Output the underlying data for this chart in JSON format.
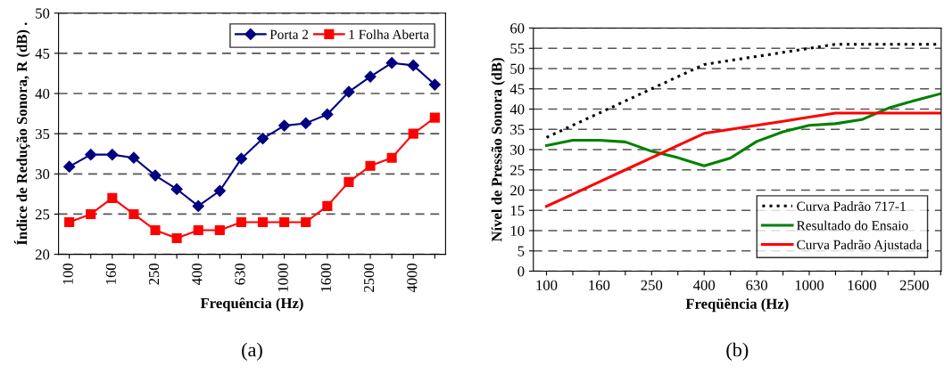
{
  "chart_data": [
    {
      "type": "line",
      "xlabel": "Frequência (Hz)",
      "ylabel": "Índice de Redução Sonora, R (dB) .",
      "categories": [
        "100",
        null,
        "160",
        null,
        "250",
        null,
        "400",
        null,
        "630",
        null,
        "1000",
        null,
        "1600",
        null,
        "2500",
        null,
        "4000",
        null
      ],
      "series": [
        {
          "name": "Porta 2",
          "color": "#000080",
          "marker": "diamond",
          "values": [
            30.9,
            32.4,
            32.4,
            32.0,
            29.8,
            28.1,
            26.0,
            27.9,
            31.9,
            34.4,
            36.0,
            36.3,
            37.4,
            40.2,
            42.1,
            43.8,
            43.5,
            41.1
          ]
        },
        {
          "name": "1 Folha Aberta",
          "color": "#ff0000",
          "marker": "square",
          "values": [
            24,
            25,
            27,
            25,
            23,
            22,
            23,
            23,
            24,
            24,
            24,
            24,
            26,
            29,
            31,
            32,
            35,
            37
          ]
        }
      ],
      "ylim": [
        20,
        50
      ],
      "yticks": [
        20,
        25,
        30,
        35,
        40,
        45,
        50
      ],
      "grid": "y",
      "legend": "top right",
      "annotations": [
        "(a)"
      ]
    },
    {
      "type": "line",
      "xlabel": "Freqüência (Hz)",
      "ylabel": "Nível de Pressão Sonora (dB)",
      "categories": [
        "100",
        null,
        "160",
        null,
        "250",
        null,
        "400",
        null,
        "630",
        null,
        "1000",
        null,
        "1600",
        null,
        "2500",
        null
      ],
      "series": [
        {
          "name": "Curva Padrão 717-1",
          "color": "#000000",
          "line_style": "dotted",
          "values": [
            33,
            36,
            39,
            42,
            45,
            48,
            51,
            52,
            53,
            54,
            55,
            56,
            56,
            56,
            56,
            56
          ]
        },
        {
          "name": "Resultado do Ensaio",
          "color": "#008000",
          "values": [
            31,
            32.3,
            32.3,
            31.9,
            29.6,
            28,
            26,
            27.9,
            32,
            34.4,
            36,
            36.4,
            37.4,
            40.2,
            42.1,
            43.8
          ]
        },
        {
          "name": "Curva Padrão Ajustada",
          "color": "#ff0000",
          "values": [
            16,
            19,
            22,
            25,
            28,
            31,
            34,
            35,
            36,
            37,
            38,
            39,
            39,
            39,
            39,
            39
          ]
        }
      ],
      "ylim": [
        0,
        60
      ],
      "yticks": [
        0,
        5,
        10,
        15,
        20,
        25,
        30,
        35,
        40,
        45,
        50,
        55,
        60
      ],
      "grid": "y",
      "legend": "bottom right",
      "annotations": [
        "(b)"
      ]
    }
  ]
}
